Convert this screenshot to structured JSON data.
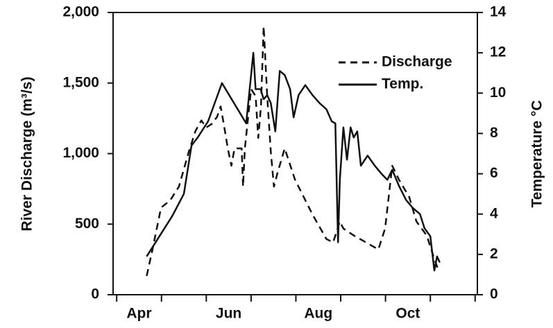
{
  "chart_data": {
    "type": "line",
    "ylabel": "River Discharge (m³/s)",
    "y2label": "Temperature °C",
    "xlim": [
      3.92,
      12.05
    ],
    "xticks": [
      4,
      5,
      6,
      7,
      8,
      9,
      10,
      11,
      12
    ],
    "xtick_labels": [
      {
        "value": 4.5,
        "label": "Apr"
      },
      {
        "value": 6.5,
        "label": "Jun"
      },
      {
        "value": 8.5,
        "label": "Aug"
      },
      {
        "value": 10.5,
        "label": "Oct"
      }
    ],
    "ylim": [
      0,
      2000
    ],
    "yticks": [
      0,
      500,
      {
        "value": 1000,
        "label": "1,000"
      },
      {
        "value": 1500,
        "label": "1,500"
      },
      {
        "value": 2000,
        "label": "2,000"
      }
    ],
    "y2lim": [
      0,
      14
    ],
    "y2ticks": [
      0,
      2,
      4,
      6,
      8,
      10,
      12,
      14
    ],
    "legend": "upper right",
    "series": [
      {
        "name": "Discharge",
        "color": "#111111",
        "dash": "dashed",
        "x": [
          4.67,
          4.8,
          4.99,
          5.19,
          5.39,
          5.61,
          5.76,
          5.89,
          6.0,
          6.12,
          6.24,
          6.32,
          6.39,
          6.48,
          6.56,
          6.63,
          6.79,
          6.82,
          6.86,
          7.0,
          7.1,
          7.16,
          7.22,
          7.28,
          7.36,
          7.44,
          7.51,
          7.59,
          7.75,
          7.98,
          8.37,
          8.68,
          8.83,
          8.98,
          9.06,
          9.29,
          9.84,
          9.99,
          10.15,
          10.3,
          10.53,
          10.69,
          10.92,
          11.07,
          11.18
        ],
        "values": [
          133,
          321,
          617,
          667,
          766,
          1013,
          1161,
          1235,
          1185,
          1210,
          1260,
          1334,
          1210,
          1037,
          914,
          1037,
          1037,
          766,
          1037,
          1457,
          1408,
          1111,
          1334,
          1902,
          1408,
          1013,
          766,
          864,
          1037,
          815,
          568,
          395,
          370,
          519,
          469,
          420,
          321,
          469,
          914,
          815,
          692,
          519,
          420,
          272,
          173
        ]
      },
      {
        "name": "Temp.",
        "color": "#111111",
        "dash": "solid",
        "axis": "y2",
        "x": [
          4.67,
          5.24,
          5.5,
          5.67,
          5.81,
          6.04,
          6.35,
          6.89,
          7.0,
          7.05,
          7.1,
          7.21,
          7.28,
          7.36,
          7.44,
          7.54,
          7.64,
          7.75,
          7.87,
          7.95,
          8.06,
          8.21,
          8.37,
          8.53,
          8.68,
          8.8,
          8.88,
          8.94,
          8.98,
          9.06,
          9.14,
          9.22,
          9.29,
          9.37,
          9.45,
          9.6,
          9.76,
          9.91,
          10.04,
          10.15,
          10.3,
          10.46,
          10.61,
          10.77,
          10.87,
          11.0,
          11.09,
          11.15,
          11.21
        ],
        "values": [
          1.9,
          3.9,
          5.0,
          7.4,
          7.8,
          8.6,
          10.5,
          8.5,
          10.9,
          12.0,
          10.2,
          10.2,
          9.7,
          9.9,
          9.5,
          8.1,
          11.1,
          10.9,
          10.2,
          8.8,
          9.9,
          10.4,
          9.9,
          9.5,
          9.2,
          8.6,
          8.5,
          2.6,
          5.7,
          8.3,
          6.7,
          8.3,
          7.8,
          8.1,
          6.4,
          6.9,
          6.4,
          6.0,
          5.7,
          6.2,
          5.4,
          4.7,
          4.3,
          4.0,
          3.3,
          2.9,
          1.2,
          1.9,
          1.6
        ]
      }
    ]
  }
}
